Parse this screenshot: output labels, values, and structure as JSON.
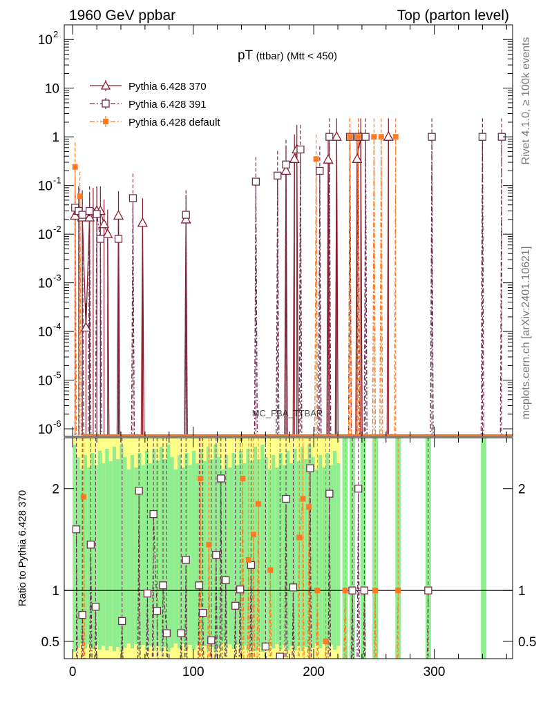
{
  "header": {
    "left": "1960 GeV ppbar",
    "right": "Top (parton level)"
  },
  "watermark": "MC_FBA_TTBAR",
  "side_labels": {
    "rivet": "Rivet 4.1.0, ≥ 100k events",
    "mcplots": "mcplots.cern.ch [arXiv:2401.10621]"
  },
  "colors": {
    "s370": "#8b1a2a",
    "s391": "#6b3050",
    "sdef": "#ff7a22",
    "band_green": "#90ee90",
    "band_yellow": "#ffff88"
  },
  "chart_data": [
    {
      "type": "scatter",
      "panel": "main",
      "title_main": "pT",
      "title_paren": "(ttbar)",
      "title_cut": "(Mtt < 450)",
      "xlabel": "",
      "ylabel": "",
      "yscale": "log",
      "xlim": [
        -7,
        365
      ],
      "ylim": [
        7e-07,
        200
      ],
      "yticks": [
        {
          "v": 1e-06,
          "label": "10",
          "exp": "-6"
        },
        {
          "v": 1e-05,
          "label": "10",
          "exp": "-5"
        },
        {
          "v": 0.0001,
          "label": "10",
          "exp": "-4"
        },
        {
          "v": 0.001,
          "label": "10",
          "exp": "-3"
        },
        {
          "v": 0.01,
          "label": "10",
          "exp": "-2"
        },
        {
          "v": 0.1,
          "label": "10",
          "exp": "-1"
        },
        {
          "v": 1,
          "label": "1",
          "exp": ""
        },
        {
          "v": 10,
          "label": "10",
          "exp": ""
        },
        {
          "v": 100,
          "label": "10",
          "exp": "2"
        }
      ],
      "legend_position": "top-left",
      "series": [
        {
          "name": "Pythia 6.428 370",
          "marker": "triangle",
          "points": [
            [
              2,
              0.024
            ],
            [
              5,
              0.03
            ],
            [
              8,
              0.022
            ],
            [
              11,
              0.00012
            ],
            [
              14,
              0.022
            ],
            [
              17,
              0.028
            ],
            [
              20,
              0.03
            ],
            [
              23,
              0.03
            ],
            [
              26,
              0.016
            ],
            [
              29,
              0.01
            ],
            [
              38,
              0.024
            ],
            [
              58,
              0.017
            ],
            [
              94,
              0.02
            ],
            [
              177,
              0.2
            ],
            [
              184,
              0.35
            ],
            [
              186,
              0.55
            ],
            [
              212,
              0.34
            ],
            [
              219,
              1.0
            ],
            [
              236,
              0.35
            ],
            [
              239,
              1.0
            ],
            [
              262,
              1.0
            ]
          ]
        },
        {
          "name": "Pythia 6.428 391",
          "marker": "square",
          "points": [
            [
              2,
              0.035
            ],
            [
              5,
              0.03
            ],
            [
              8,
              0.025
            ],
            [
              14,
              0.03
            ],
            [
              20,
              0.026
            ],
            [
              23,
              0.008
            ],
            [
              38,
              0.008
            ],
            [
              50,
              0.055
            ],
            [
              94,
              0.025
            ],
            [
              152,
              0.12
            ],
            [
              170,
              0.16
            ],
            [
              177,
              0.27
            ],
            [
              189,
              0.55
            ],
            [
              205,
              0.2
            ],
            [
              213,
              1.0
            ],
            [
              230,
              1.0
            ],
            [
              237,
              1.0
            ],
            [
              243,
              1.0
            ],
            [
              298,
              1.0
            ],
            [
              340,
              1.0
            ],
            [
              356,
              1.0
            ]
          ]
        },
        {
          "name": "Pythia 6.428 default",
          "marker": "filled-square",
          "points": [
            [
              2,
              0.24
            ],
            [
              6,
              0.06
            ],
            [
              202,
              0.35
            ],
            [
              230,
              1.0
            ],
            [
              237,
              1.0
            ],
            [
              250,
              1.0
            ],
            [
              256,
              1.0
            ],
            [
              268,
              1.0
            ]
          ]
        }
      ]
    },
    {
      "type": "scatter",
      "panel": "ratio",
      "ylabel": "Ratio to Pythia 6.428 370",
      "xlabel": "",
      "xlim": [
        -7,
        365
      ],
      "ylim": [
        0.33,
        2.5
      ],
      "reference_line": 1,
      "xticks": [
        0,
        100,
        200,
        300
      ],
      "yticks": [
        {
          "v": 0.5,
          "label": "0.5"
        },
        {
          "v": 1,
          "label": "1"
        },
        {
          "v": 2,
          "label": "2"
        }
      ],
      "series": [
        {
          "name": "Pythia 6.428 391 / 370",
          "points": [
            [
              3,
              1.6
            ],
            [
              8,
              0.76
            ],
            [
              15,
              1.45
            ],
            [
              19,
              0.84
            ],
            [
              41,
              0.7
            ],
            [
              55,
              1.98
            ],
            [
              62,
              0.97
            ],
            [
              67,
              1.75
            ],
            [
              70,
              0.8
            ],
            [
              75,
              1.05
            ],
            [
              78,
              0.58
            ],
            [
              90,
              0.58
            ],
            [
              94,
              1.3
            ],
            [
              105,
              1.05
            ],
            [
              108,
              0.78
            ],
            [
              115,
              0.51
            ],
            [
              119,
              1.35
            ],
            [
              123,
              2.1
            ],
            [
              127,
              1.1
            ],
            [
              135,
              0.85
            ],
            [
              139,
              1.01
            ],
            [
              148,
              1.25
            ],
            [
              160,
              0.45
            ],
            [
              172,
              0.35
            ],
            [
              177,
              1.9
            ],
            [
              183,
              1.03
            ],
            [
              197,
              2.2
            ],
            [
              213,
              1.95
            ],
            [
              232,
              1.0
            ],
            [
              237,
              2.0
            ],
            [
              242,
              1.0
            ],
            [
              295,
              1.0
            ]
          ]
        },
        {
          "name": "Pythia 6.428 default / 370",
          "points": [
            [
              9,
              1.92
            ],
            [
              106,
              2.1
            ],
            [
              113,
              1.45
            ],
            [
              141,
              2.1
            ],
            [
              146,
              1.3
            ],
            [
              150,
              1.55
            ],
            [
              154,
              1.85
            ],
            [
              164,
              1.2
            ],
            [
              188,
              1.52
            ],
            [
              191,
              1.9
            ],
            [
              196,
              1.82
            ],
            [
              203,
              1.0
            ],
            [
              210,
              0.5
            ],
            [
              226,
              1.0
            ],
            [
              251,
              1.0
            ],
            [
              270,
              1.0
            ]
          ]
        }
      ]
    }
  ]
}
